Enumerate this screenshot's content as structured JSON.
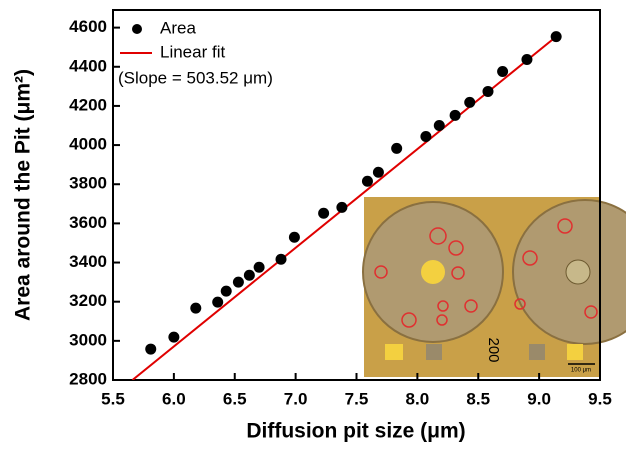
{
  "chart_data": {
    "type": "scatter",
    "xlabel": "Diffusion pit size (μm)",
    "ylabel": "Area around the Pit (μm²)",
    "annotation": "(Slope = 503.52 μm)",
    "xlim": [
      5.5,
      9.5
    ],
    "xticks": [
      5.5,
      6.0,
      6.5,
      7.0,
      7.5,
      8.0,
      8.5,
      9.0,
      9.5
    ],
    "ylim": [
      2800,
      4690
    ],
    "yticks": [
      2800,
      3000,
      3200,
      3400,
      3600,
      3800,
      4000,
      4200,
      4400,
      4600
    ],
    "series": [
      {
        "name": "Area",
        "color": "#000000",
        "type": "scatter",
        "x": [
          5.81,
          6.0,
          6.18,
          6.36,
          6.43,
          6.53,
          6.62,
          6.7,
          6.88,
          6.99,
          7.23,
          7.38,
          7.59,
          7.68,
          7.83,
          8.07,
          8.18,
          8.31,
          8.43,
          8.58,
          8.7,
          8.9,
          9.14
        ],
        "values": [
          2958,
          3019,
          3167,
          3198,
          3254,
          3300,
          3335,
          3376,
          3417,
          3529,
          3652,
          3682,
          3815,
          3861,
          3983,
          4044,
          4100,
          4152,
          4218,
          4274,
          4376,
          4437,
          4554
        ]
      },
      {
        "name": "Linear fit",
        "color": "#e00000",
        "type": "line",
        "x": [
          5.66,
          9.14
        ],
        "values": [
          2800,
          4554
        ]
      }
    ],
    "inset": {
      "label": "200",
      "scale_bar": "100 μm"
    }
  }
}
